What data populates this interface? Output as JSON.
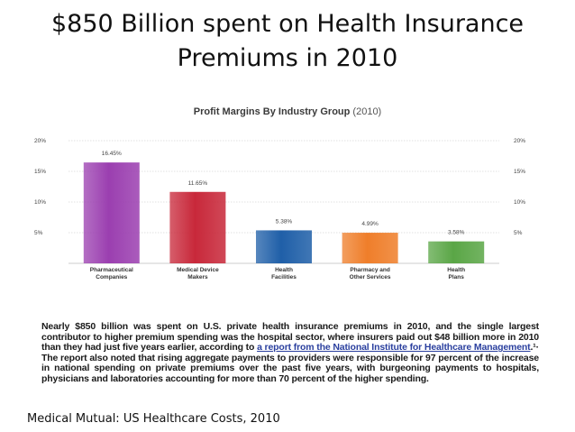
{
  "slide": {
    "title_line1": "$850 Billion spent on Health Insurance",
    "title_line2": "Premiums in 2010",
    "source": "Medical Mutual:  US Healthcare Costs, 2010"
  },
  "chart_data": {
    "type": "bar",
    "title": "Profit Margins By Industry Group",
    "title_suffix": "(2010)",
    "categories": [
      "Pharmaceutical\nCompanies",
      "Medical Device\nMakers",
      "Health\nFacilities",
      "Pharmacy and\nOther Services",
      "Health\nPlans"
    ],
    "values": [
      16.45,
      11.65,
      5.38,
      4.99,
      3.58
    ],
    "value_labels": [
      "16.45%",
      "11.65%",
      "5.38%",
      "4.99%",
      "3.58%"
    ],
    "colors": [
      "#9b3fb0",
      "#c8283a",
      "#1f5fa8",
      "#ef7e2a",
      "#5aa646"
    ],
    "ylim": [
      0,
      20
    ],
    "yticks": [
      5,
      10,
      15,
      20
    ],
    "ytick_labels": [
      "5%",
      "10%",
      "15%",
      "20%"
    ],
    "grid": true,
    "xlabel": "",
    "ylabel": ""
  },
  "paragraph": {
    "part1": "Nearly $850 billion was spent on U.S. private health insurance premiums in 2010, and the single largest contributor to higher premium spending was the hospital sector, where insurers paid out $48 billion more in 2010 than they had just five years earlier, according to ",
    "link": "a report from the National Institute for Healthcare Management",
    "part2": ".¹· The report also noted that rising aggregate payments to providers were responsible for 97 percent of the increase in national spending on private premiums over the past five years, with burgeoning payments to hospitals, physicians and laboratories accounting for more than 70 percent of the higher spending."
  }
}
